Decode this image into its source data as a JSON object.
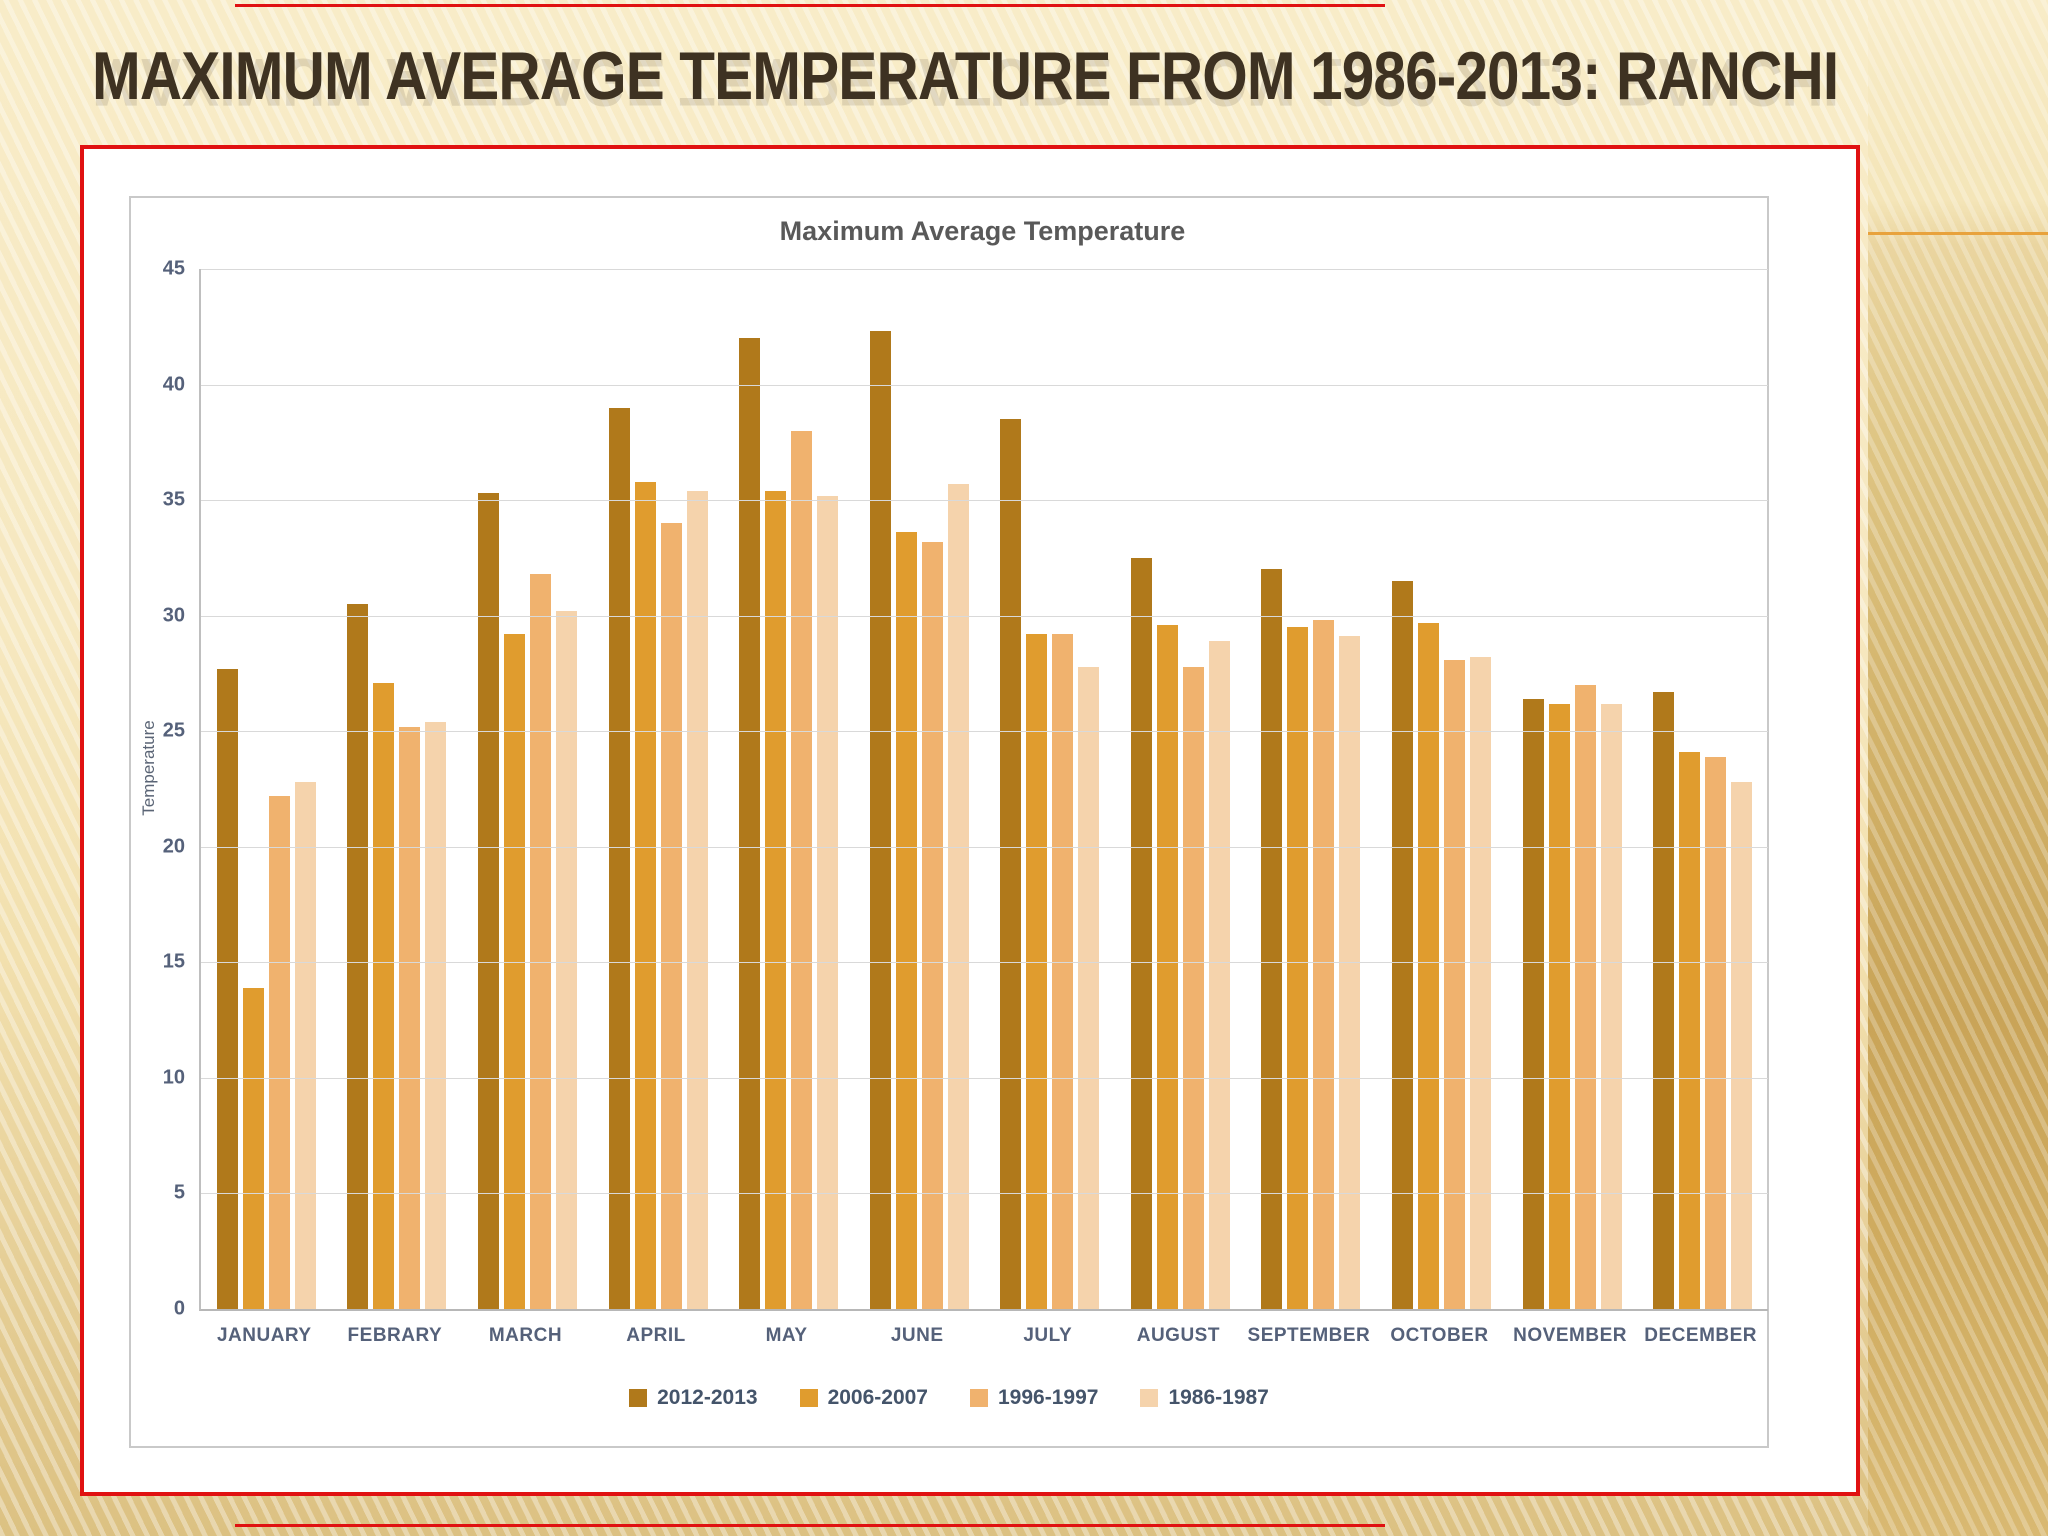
{
  "slide": {
    "heading": "MAXIMUM AVERAGE TEMPERATURE FROM 1986-2013: RANCHI"
  },
  "colors": {
    "slide_background_light": "#F8ECC8",
    "slide_background_gold": "#D2B269",
    "frame_red": "#E01111",
    "accent_orange": "#E8A23C",
    "heading_text": "#3E3222",
    "chart_title_text": "#595959",
    "axis_text": "#55617A",
    "gridline": "#D9D9D9"
  },
  "chart_data": {
    "type": "bar",
    "title": "Maximum Average Temperature",
    "xlabel": "",
    "ylabel": "Temperature",
    "ylim": [
      0,
      45
    ],
    "yticks": [
      45,
      40,
      35,
      30,
      25,
      20,
      15,
      10,
      5,
      0
    ],
    "grid": true,
    "legend_position": "bottom",
    "categories": [
      "JANUARY",
      "FEBRARY",
      "MARCH",
      "APRIL",
      "MAY",
      "JUNE",
      "JULY",
      "AUGUST",
      "SEPTEMBER",
      "OCTOBER",
      "NOVEMBER",
      "DECEMBER"
    ],
    "series": [
      {
        "name": "2012-2013",
        "color": "#B0791B",
        "values": [
          27.7,
          30.5,
          35.3,
          39.0,
          42.0,
          42.3,
          38.5,
          32.5,
          32.0,
          31.5,
          26.4,
          26.7
        ]
      },
      {
        "name": "2006-2007",
        "color": "#E09C2E",
        "values": [
          13.9,
          27.1,
          29.2,
          35.8,
          35.4,
          33.6,
          29.2,
          29.6,
          29.5,
          29.7,
          26.2,
          24.1
        ]
      },
      {
        "name": "1996-1997",
        "color": "#F0B26E",
        "values": [
          22.2,
          25.2,
          31.8,
          34.0,
          38.0,
          33.2,
          29.2,
          27.8,
          29.8,
          28.1,
          27.0,
          23.9
        ]
      },
      {
        "name": "1986-1987",
        "color": "#F5D3AC",
        "values": [
          22.8,
          25.4,
          30.2,
          35.4,
          35.2,
          35.7,
          27.8,
          28.9,
          29.1,
          28.2,
          26.2,
          22.8
        ]
      }
    ]
  }
}
